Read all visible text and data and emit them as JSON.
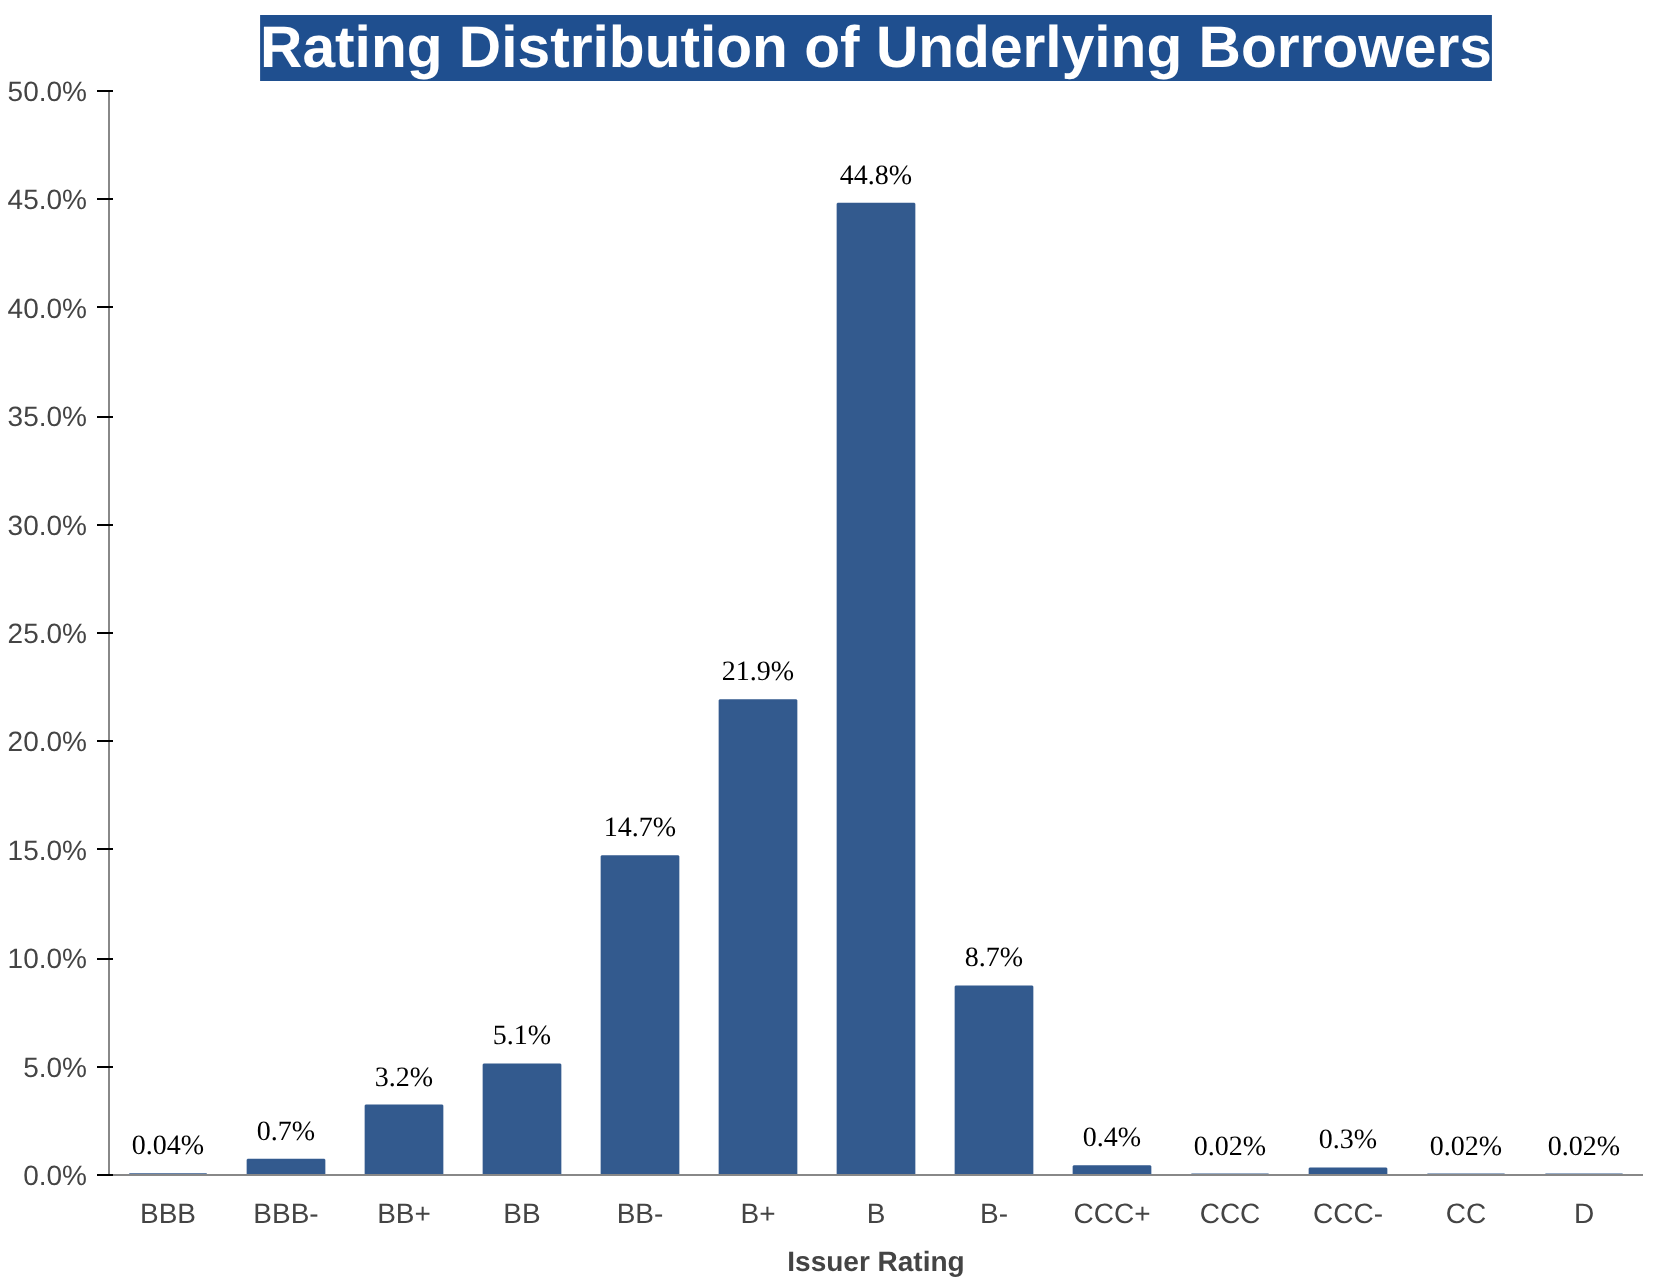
{
  "chart_data": {
    "type": "bar",
    "title": "Rating Distribution of Underlying Borrowers",
    "xlabel": "Issuer Rating",
    "categories": [
      "BBB",
      "BBB-",
      "BB+",
      "BB",
      "BB-",
      "B+",
      "B",
      "B-",
      "CCC+",
      "CCC",
      "CCC-",
      "CC",
      "D"
    ],
    "values": [
      0.04,
      0.7,
      3.2,
      5.1,
      14.7,
      21.9,
      44.8,
      8.7,
      0.4,
      0.02,
      0.3,
      0.02,
      0.02
    ],
    "value_labels": [
      "0.04%",
      "0.7%",
      "3.2%",
      "5.1%",
      "14.7%",
      "21.9%",
      "44.8%",
      "8.7%",
      "0.4%",
      "0.02%",
      "0.3%",
      "0.02%",
      "0.02%"
    ],
    "color": "#335a8e",
    "ylim": [
      0,
      50
    ],
    "yticks": [
      {
        "value": 0,
        "label": "0.0%"
      },
      {
        "value": 5,
        "label": "5.0%"
      },
      {
        "value": 10,
        "label": "10.0%"
      },
      {
        "value": 15,
        "label": "15.0%"
      },
      {
        "value": 20,
        "label": "20.0%"
      },
      {
        "value": 25,
        "label": "25.0%"
      },
      {
        "value": 30,
        "label": "30.0%"
      },
      {
        "value": 35,
        "label": "35.0%"
      },
      {
        "value": 40,
        "label": "40.0%"
      },
      {
        "value": 45,
        "label": "45.0%"
      },
      {
        "value": 50,
        "label": "50.0%"
      }
    ],
    "grid": false
  }
}
